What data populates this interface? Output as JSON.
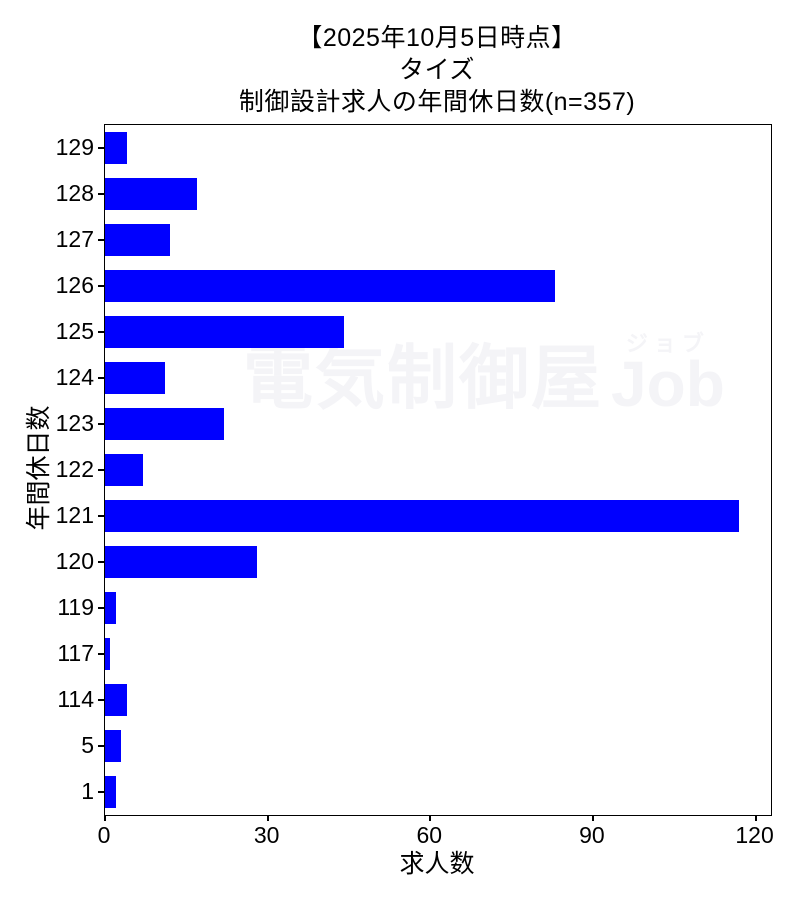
{
  "chart_data": {
    "type": "bar",
    "orientation": "horizontal",
    "title_lines": [
      "【2025年10月5日時点】",
      "タイズ",
      "制御設計求人の年間休日数(n=357)"
    ],
    "categories": [
      "129",
      "128",
      "127",
      "126",
      "125",
      "124",
      "123",
      "122",
      "121",
      "120",
      "119",
      "117",
      "114",
      "5",
      "1"
    ],
    "values": [
      4,
      17,
      12,
      83,
      44,
      11,
      22,
      7,
      117,
      28,
      2,
      1,
      4,
      3,
      2
    ],
    "xlabel": "求人数",
    "ylabel": "年間休日数",
    "xticks": [
      "0",
      "30",
      "60",
      "90",
      "120"
    ],
    "xlim": [
      0,
      122.85
    ],
    "grid": false,
    "legend": false,
    "bar_color": "#0000ff",
    "total_n": 357
  },
  "watermark": {
    "text_main": "電気制御屋",
    "text_furigana": "ジョブ",
    "text_latin": "Job",
    "color": "#f4f4f7"
  }
}
